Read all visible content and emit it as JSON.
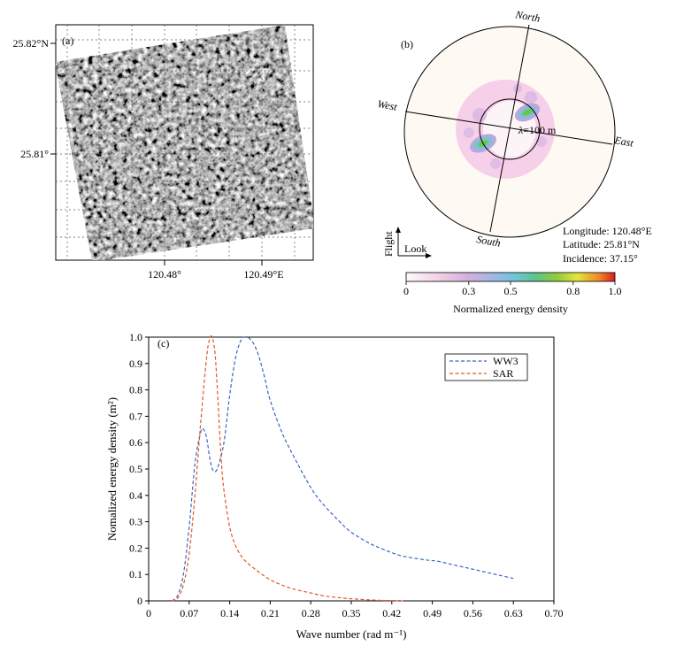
{
  "panel_a": {
    "label": "(a)",
    "lat_ticks": [
      "25.82°N",
      "25.81°"
    ],
    "lon_ticks": [
      "120.48°",
      "120.49°E"
    ]
  },
  "panel_b": {
    "label": "(b)",
    "directions": {
      "north": "North",
      "south": "South",
      "east": "East",
      "west": "West"
    },
    "ring_label_symbol": "λ",
    "ring_label_value": "=100 m",
    "flight_label": "Flight",
    "look_label": "Look",
    "info": {
      "longitude": "Longitude: 120.48°E",
      "latitude": "Latitude: 25.81°N",
      "incidence": "Incidence: 37.15°"
    },
    "colorbar": {
      "ticks": [
        "0",
        "0.3",
        "0.5",
        "0.8",
        "1.0"
      ],
      "tick_values": [
        0,
        0.3,
        0.5,
        0.8,
        1.0
      ],
      "label": "Normalized energy density",
      "colors": [
        "#fdfbfd",
        "#f3c9e4",
        "#c8a6d6",
        "#8fc3e6",
        "#5dc6b4",
        "#72c24a",
        "#e3e43a",
        "#ef8c2b",
        "#d81e1e"
      ]
    }
  },
  "chart_data": [
    {
      "type": "line",
      "panel": "(c)",
      "xlabel": "Wave number (rad m⁻¹)",
      "ylabel": "Nomalized energy density (m²)",
      "xlim": [
        0,
        0.7
      ],
      "ylim": [
        0,
        1.0
      ],
      "xticks": [
        "0",
        "0.07",
        "0.14",
        "0.21",
        "0.28",
        "0.35",
        "0.42",
        "0.49",
        "0.56",
        "0.63",
        "0.70"
      ],
      "xtick_values": [
        0,
        0.07,
        0.14,
        0.21,
        0.28,
        0.35,
        0.42,
        0.49,
        0.56,
        0.63,
        0.7
      ],
      "yticks": [
        "0",
        "0.1",
        "0.2",
        "0.3",
        "0.4",
        "0.5",
        "0.6",
        "0.7",
        "0.8",
        "0.9",
        "1.0"
      ],
      "ytick_values": [
        0,
        0.1,
        0.2,
        0.3,
        0.4,
        0.5,
        0.6,
        0.7,
        0.8,
        0.9,
        1.0
      ],
      "legend_position": "top-right",
      "series": [
        {
          "name": "WW3",
          "color": "#3a66c4",
          "x": [
            0.04,
            0.05,
            0.06,
            0.07,
            0.08,
            0.09,
            0.095,
            0.1,
            0.105,
            0.11,
            0.115,
            0.12,
            0.13,
            0.14,
            0.15,
            0.16,
            0.17,
            0.18,
            0.19,
            0.2,
            0.21,
            0.23,
            0.25,
            0.28,
            0.3,
            0.33,
            0.35,
            0.38,
            0.4,
            0.43,
            0.45,
            0.48,
            0.5,
            0.52,
            0.55,
            0.58,
            0.6,
            0.62,
            0.63
          ],
          "y": [
            0.0,
            0.02,
            0.1,
            0.28,
            0.52,
            0.64,
            0.65,
            0.62,
            0.55,
            0.5,
            0.49,
            0.51,
            0.6,
            0.78,
            0.92,
            0.99,
            1.0,
            0.98,
            0.93,
            0.85,
            0.76,
            0.64,
            0.55,
            0.43,
            0.37,
            0.3,
            0.26,
            0.22,
            0.2,
            0.175,
            0.165,
            0.155,
            0.15,
            0.14,
            0.125,
            0.11,
            0.1,
            0.09,
            0.085
          ]
        },
        {
          "name": "SAR",
          "color": "#e25826",
          "x": [
            0.04,
            0.05,
            0.06,
            0.07,
            0.08,
            0.09,
            0.1,
            0.105,
            0.11,
            0.115,
            0.12,
            0.125,
            0.13,
            0.14,
            0.15,
            0.16,
            0.17,
            0.19,
            0.21,
            0.23,
            0.25,
            0.28,
            0.3,
            0.33,
            0.35,
            0.38,
            0.4,
            0.42,
            0.44
          ],
          "y": [
            0.0,
            0.01,
            0.06,
            0.18,
            0.4,
            0.68,
            0.92,
            0.99,
            1.0,
            0.93,
            0.75,
            0.55,
            0.42,
            0.28,
            0.21,
            0.17,
            0.145,
            0.11,
            0.08,
            0.06,
            0.045,
            0.03,
            0.02,
            0.012,
            0.008,
            0.004,
            0.002,
            0.001,
            0.0
          ]
        }
      ]
    }
  ]
}
